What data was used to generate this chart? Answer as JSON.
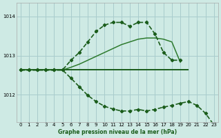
{
  "background_color": "#ceeae4",
  "grid_color": "#a8cccc",
  "line_color_dark": "#1a5c1a",
  "line_color_mid": "#2d7a2d",
  "xlabel": "Graphe pression niveau de la mer (hPa)",
  "xlim": [
    -0.5,
    23.5
  ],
  "ylim": [
    1011.3,
    1014.35
  ],
  "yticks": [
    1012,
    1013,
    1014
  ],
  "xticks": [
    0,
    1,
    2,
    3,
    4,
    5,
    6,
    7,
    8,
    9,
    10,
    11,
    12,
    13,
    14,
    15,
    16,
    17,
    18,
    19,
    20,
    21,
    22,
    23
  ],
  "flat_line": {
    "x": [
      0,
      1,
      2,
      3,
      4,
      5,
      6,
      7,
      8,
      9,
      10,
      11,
      12,
      13,
      14,
      15,
      16,
      17,
      18,
      19,
      20
    ],
    "y": [
      1012.63,
      1012.63,
      1012.63,
      1012.63,
      1012.63,
      1012.63,
      1012.63,
      1012.63,
      1012.63,
      1012.63,
      1012.63,
      1012.63,
      1012.63,
      1012.63,
      1012.63,
      1012.63,
      1012.63,
      1012.63,
      1012.63,
      1012.63,
      1012.63
    ]
  },
  "rising_line": {
    "x": [
      0,
      1,
      2,
      3,
      4,
      5,
      6,
      7,
      8,
      9,
      10,
      11,
      12,
      13,
      14,
      15,
      16,
      17,
      18,
      19
    ],
    "y": [
      1012.63,
      1012.63,
      1012.63,
      1012.63,
      1012.63,
      1012.63,
      1012.7,
      1012.78,
      1012.88,
      1012.98,
      1013.08,
      1013.18,
      1013.28,
      1013.35,
      1013.42,
      1013.45,
      1013.45,
      1013.42,
      1013.35,
      1012.83
    ]
  },
  "upper_dashed": {
    "x": [
      0,
      1,
      2,
      3,
      4,
      5,
      6,
      7,
      8,
      9,
      10,
      11,
      12,
      13,
      14,
      15,
      16,
      17,
      18,
      19
    ],
    "y": [
      1012.63,
      1012.63,
      1012.63,
      1012.63,
      1012.63,
      1012.63,
      1012.88,
      1013.08,
      1013.35,
      1013.62,
      1013.78,
      1013.85,
      1013.85,
      1013.75,
      1013.85,
      1013.85,
      1013.55,
      1013.08,
      1012.88,
      1012.88
    ]
  },
  "lower_dashed": {
    "x": [
      0,
      1,
      2,
      3,
      4,
      5,
      6,
      7,
      8,
      9,
      10,
      11,
      12,
      13,
      14,
      15,
      16,
      17,
      18,
      19,
      20,
      21,
      22,
      23
    ],
    "y": [
      1012.63,
      1012.63,
      1012.63,
      1012.63,
      1012.63,
      1012.63,
      1012.42,
      1012.2,
      1011.98,
      1011.82,
      1011.7,
      1011.63,
      1011.58,
      1011.58,
      1011.62,
      1011.58,
      1011.62,
      1011.68,
      1011.72,
      1011.78,
      1011.82,
      1011.72,
      1011.52,
      1011.22
    ]
  }
}
